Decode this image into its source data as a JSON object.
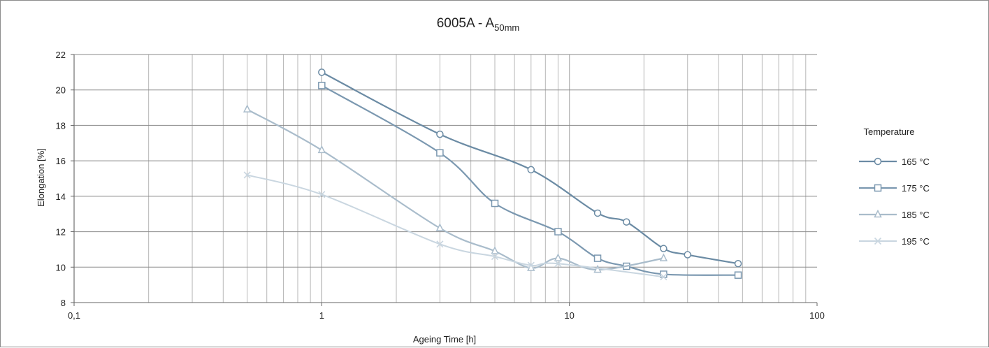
{
  "chart_data": {
    "type": "line",
    "title": "6005A - A",
    "title_subscript": "50mm",
    "xlabel": "Ageing Time [h]",
    "ylabel": "Elongation [%]",
    "x_scale": "log",
    "xlim": [
      0.1,
      100
    ],
    "ylim": [
      8,
      22
    ],
    "x_tick_labels": [
      "0,1",
      "1",
      "10",
      "100"
    ],
    "y_ticks": [
      8,
      10,
      12,
      14,
      16,
      18,
      20,
      22
    ],
    "grid": true,
    "legend_title": "Temperature",
    "legend_position": "right",
    "series": [
      {
        "name": "165 °C",
        "color": "#6b8ba4",
        "marker": "circle",
        "x": [
          1,
          3,
          7,
          13,
          17,
          24,
          30,
          48
        ],
        "y": [
          21.0,
          17.5,
          15.5,
          13.05,
          12.55,
          11.05,
          10.7,
          10.2
        ]
      },
      {
        "name": "175 °C",
        "color": "#7b98b0",
        "marker": "square",
        "x": [
          1,
          3,
          5,
          9,
          13,
          17,
          24,
          48
        ],
        "y": [
          20.25,
          16.45,
          13.6,
          12.0,
          10.5,
          10.05,
          9.6,
          9.55
        ]
      },
      {
        "name": "185 °C",
        "color": "#a9bccb",
        "marker": "triangle",
        "x": [
          0.5,
          1,
          3,
          5,
          7,
          9,
          13,
          24
        ],
        "y": [
          18.9,
          16.6,
          12.2,
          10.9,
          9.95,
          10.5,
          9.85,
          10.5
        ]
      },
      {
        "name": "195 °C",
        "color": "#c9d6e0",
        "marker": "x",
        "x": [
          0.5,
          1,
          3,
          5,
          7,
          9,
          24
        ],
        "y": [
          15.2,
          14.1,
          11.3,
          10.6,
          10.1,
          10.2,
          9.45
        ]
      }
    ]
  }
}
